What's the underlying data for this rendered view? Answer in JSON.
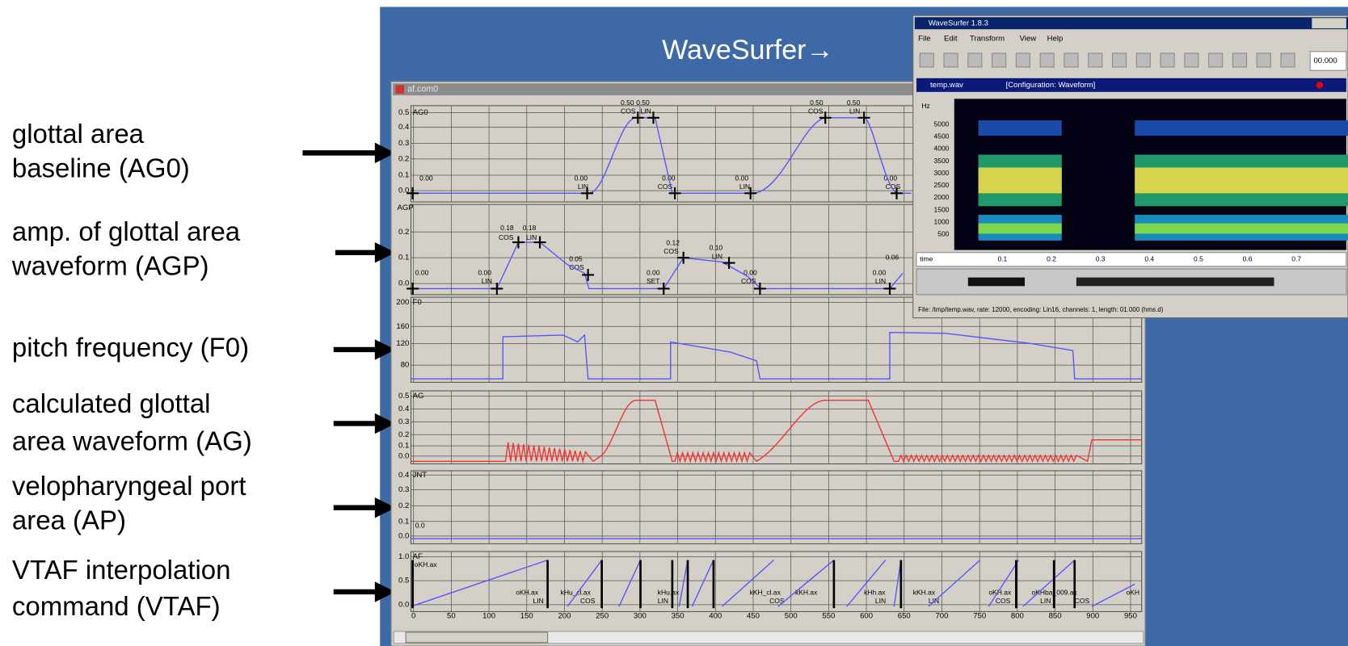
{
  "slide": {
    "annotations": [
      [
        "glottal area",
        "baseline (AG0)"
      ],
      [
        "amp. of glottal area",
        "waveform (AGP)"
      ],
      [
        "pitch frequency (F0)"
      ],
      [
        "calculated glottal",
        "area waveform (AG)"
      ],
      [
        "velopharyngeal port",
        "area (AP)"
      ],
      [
        "VTAF interpolation",
        "command (VTAF)"
      ]
    ],
    "wavesurfer_label": "WaveSurfer→"
  },
  "editor": {
    "title": "af.com0",
    "panels": [
      {
        "name": "AG0",
        "ticks": [
          "0.5",
          "0.4",
          "0.3",
          "0.2",
          "0.1",
          "0.0"
        ],
        "labels": [
          "0.00",
          "0.50",
          "0.50",
          "COS",
          "LIN",
          "0.00",
          "LIN",
          "0.00",
          "COS",
          "0.00",
          "LIN",
          "0.50",
          "0.50",
          "COS",
          "LIN",
          "0.00",
          "COS"
        ]
      },
      {
        "name": "AGP",
        "ticks": [
          "0.2",
          "0.1",
          "0.0"
        ],
        "labels": [
          "0.00",
          "0.00",
          "LIN",
          "0.18",
          "0.18",
          "COS",
          "LIN",
          "0.05",
          "COS",
          "0.00",
          "SET",
          "0.12",
          "COS",
          "0.10",
          "LIN",
          "0.00",
          "COS",
          "0.00",
          "0.06",
          "LIN"
        ]
      },
      {
        "name": "F0",
        "ticks": [
          "200",
          "160",
          "120",
          "80"
        ],
        "labels": []
      },
      {
        "name": "AG",
        "ticks": [
          "0.5",
          "0.4",
          "0.3",
          "0.2",
          "0.1",
          "0.0"
        ],
        "labels": []
      },
      {
        "name": "JNT",
        "ticks": [
          "0.4",
          "0.3",
          "0.2",
          "0.1",
          "0.0"
        ],
        "labels": [
          "0.0"
        ]
      },
      {
        "name": "AF",
        "ticks": [
          "1.0",
          "0.5",
          "0.0"
        ],
        "labels": [
          "oKH.ax",
          "oKH.ax",
          "LIN",
          "kHu_cl.ax",
          "COS",
          "kHu.ax",
          "LIN",
          "kKH_cl.ax",
          "COS",
          "kKH.ax",
          "kHh.ax",
          "LIN",
          "kKH.ax",
          "LIN",
          "oKH.ax",
          "COS",
          "oKHba_009.ax",
          "LIN",
          "COS",
          "oKH"
        ]
      }
    ],
    "x_ticks": [
      "0",
      "50",
      "100",
      "150",
      "200",
      "250",
      "300",
      "350",
      "400",
      "450",
      "500",
      "550",
      "600",
      "650",
      "700",
      "750",
      "800",
      "850",
      "900",
      "950"
    ]
  },
  "wavesurfer": {
    "title": "WaveSurfer 1.8.3",
    "menu": [
      "File",
      "Edit",
      "Transform",
      "View",
      "Help"
    ],
    "time_display": "00.000",
    "file": "temp.wav",
    "configuration": "[Configuration: Waveform]",
    "freq_unit": "Hz",
    "freq_ticks": [
      "5000",
      "4500",
      "4000",
      "3500",
      "3000",
      "2500",
      "2000",
      "1500",
      "1000",
      "500"
    ],
    "time_label": "time",
    "time_ticks": [
      "0.1",
      "0.2",
      "0.3",
      "0.4",
      "0.5",
      "0.6",
      "0.7"
    ],
    "status": "File: /tmp/temp.wav, rate: 12000, encoding: Lin16, channels: 1, length: 01.000 (hms.d)"
  }
}
